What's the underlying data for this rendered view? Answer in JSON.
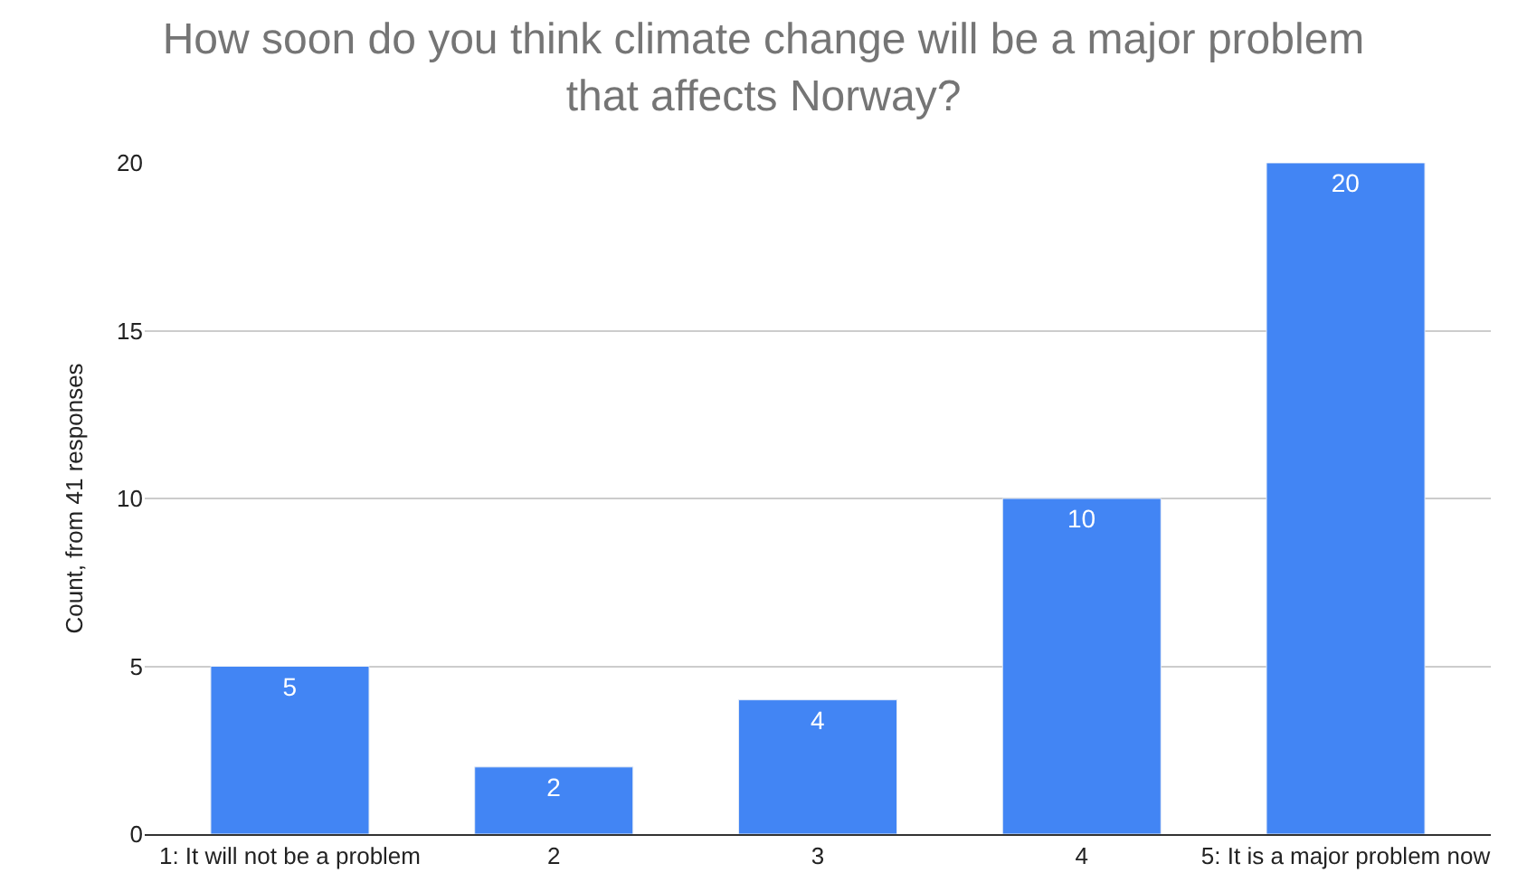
{
  "chart_data": {
    "type": "bar",
    "title": "How soon do you think climate change will be a major problem that affects Norway?",
    "ylabel": "Count, from 41 responses",
    "categories": [
      "1: It will not be a problem",
      "2",
      "3",
      "4",
      "5: It is a major problem now"
    ],
    "values": [
      5,
      2,
      4,
      10,
      20
    ],
    "color": "#4285f4",
    "ylim": [
      0,
      20
    ],
    "yticks": [
      0,
      5,
      10,
      15,
      20
    ],
    "grid": "y",
    "data_labels": true
  }
}
